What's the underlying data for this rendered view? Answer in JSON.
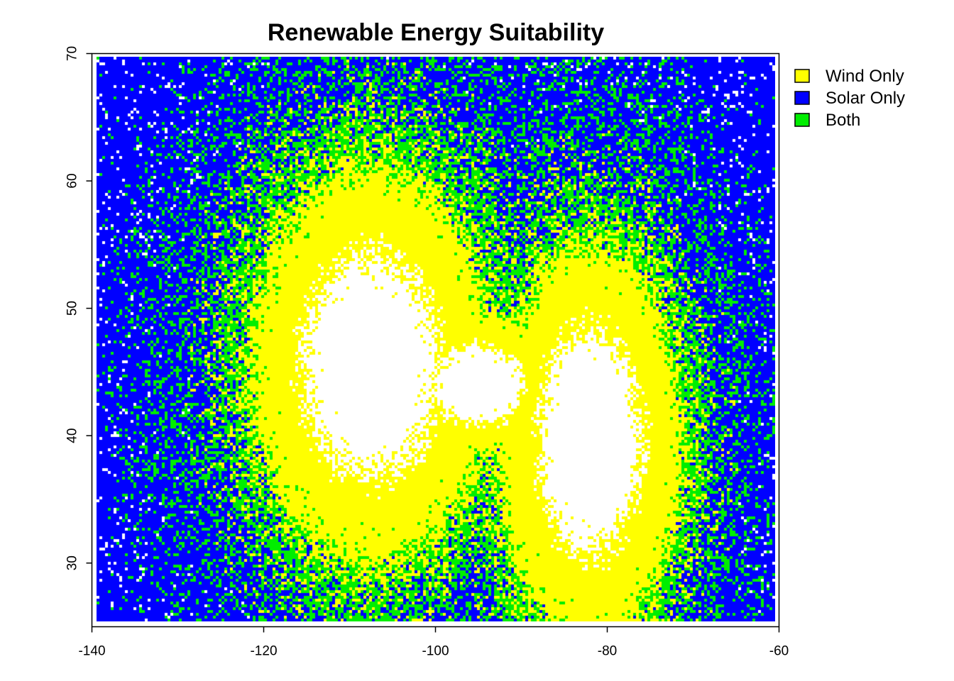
{
  "chart_data": {
    "type": "heatmap",
    "title": "Renewable Energy Suitability",
    "xlabel": "",
    "ylabel": "",
    "xlim": [
      -140,
      -60
    ],
    "ylim": [
      25,
      70
    ],
    "x_ticks": [
      -140,
      -120,
      -100,
      -80,
      -60
    ],
    "y_ticks": [
      30,
      40,
      50,
      60,
      70
    ],
    "x_tick_labels": [
      "-140",
      "-120",
      "-100",
      "-80",
      "-60"
    ],
    "y_tick_labels": [
      "30",
      "40",
      "50",
      "60",
      "70"
    ],
    "grid": false,
    "legend_position": "top-right",
    "categories": [
      {
        "name": "Wind Only",
        "color": "#ffff00"
      },
      {
        "name": "Solar Only",
        "color": "#0000ff"
      },
      {
        "name": "Both",
        "color": "#00ee00"
      }
    ],
    "unclassified_color": "#ffffff",
    "regions": {
      "high_suitability_cores": [
        {
          "center": [
            -107,
            45.5
          ],
          "description": "large core, west"
        },
        {
          "center": [
            -82,
            39.5
          ],
          "description": "smaller core, east"
        }
      ],
      "pattern": "cores surrounded by Wind Only ring, then Both band, then Solar Only background"
    }
  }
}
